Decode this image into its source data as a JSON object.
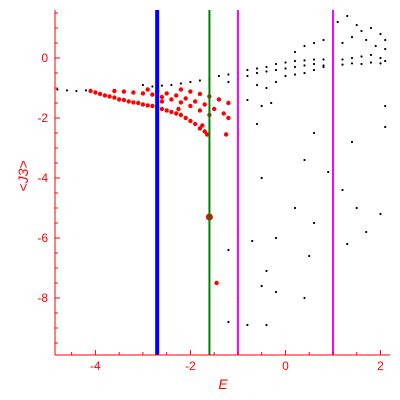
{
  "chart_data": {
    "type": "scatter",
    "title": "",
    "xlabel": "E",
    "ylabel": "<J3>",
    "xlim": [
      -4.85,
      2.2
    ],
    "ylim": [
      -9.9,
      1.6
    ],
    "x_ticks": [
      -4,
      -2,
      0,
      2
    ],
    "y_ticks": [
      0,
      -2,
      -4,
      -6,
      -8
    ],
    "axis_color": "#ff0000",
    "grid": false,
    "legend": "none",
    "vertical_lines": [
      {
        "x": -2.7,
        "color": "#0000ff"
      },
      {
        "x": -1.6,
        "color": "#008000"
      },
      {
        "x": -1.0,
        "color": "#ff00ff"
      },
      {
        "x": 1.0,
        "color": "#ff00ff"
      }
    ],
    "series": [
      {
        "color": "#ff0000",
        "points": [
          [
            -4.1,
            -1.1
          ],
          [
            -4.0,
            -1.15
          ],
          [
            -3.9,
            -1.2
          ],
          [
            -3.8,
            -1.25
          ],
          [
            -3.7,
            -1.28
          ],
          [
            -3.6,
            -1.32
          ],
          [
            -3.5,
            -1.38
          ],
          [
            -3.4,
            -1.4
          ],
          [
            -3.3,
            -1.45
          ],
          [
            -3.2,
            -1.48
          ],
          [
            -3.1,
            -1.5
          ],
          [
            -3.0,
            -1.55
          ],
          [
            -2.9,
            -1.58
          ],
          [
            -2.8,
            -1.6
          ],
          [
            -2.7,
            -1.65
          ],
          [
            -2.6,
            -1.7
          ],
          [
            -2.5,
            -1.75
          ],
          [
            -2.4,
            -1.8
          ],
          [
            -2.3,
            -1.85
          ],
          [
            -2.2,
            -1.9
          ],
          [
            -2.1,
            -2.0
          ],
          [
            -2.0,
            -2.1
          ],
          [
            -1.9,
            -2.2
          ],
          [
            -1.8,
            -2.35
          ],
          [
            -1.7,
            -2.45
          ],
          [
            -1.65,
            -2.55
          ],
          [
            -3.6,
            -1.1
          ],
          [
            -3.4,
            -1.12
          ],
          [
            -3.2,
            -1.15
          ],
          [
            -3.0,
            -1.18
          ],
          [
            -2.8,
            -1.22
          ],
          [
            -2.6,
            -1.3
          ],
          [
            -2.4,
            -1.38
          ],
          [
            -2.2,
            -1.48
          ],
          [
            -2.0,
            -1.6
          ],
          [
            -1.8,
            -1.75
          ],
          [
            -1.6,
            -1.9
          ],
          [
            -2.9,
            -1.05
          ],
          [
            -2.7,
            -1.1
          ],
          [
            -2.5,
            -1.18
          ],
          [
            -2.3,
            -1.25
          ],
          [
            -2.1,
            -1.35
          ],
          [
            -1.9,
            -1.45
          ],
          [
            -1.7,
            -1.55
          ],
          [
            -1.5,
            -1.7
          ],
          [
            -1.3,
            -1.85
          ],
          [
            -2.2,
            -1.05
          ],
          [
            -2.0,
            -1.12
          ],
          [
            -1.8,
            -1.2
          ],
          [
            -1.6,
            -1.28
          ],
          [
            -1.4,
            -1.38
          ],
          [
            -1.2,
            -1.5
          ],
          [
            -1.6,
            -5.3
          ],
          [
            -1.45,
            -7.5
          ],
          [
            -1.25,
            -2.55
          ],
          [
            -1.2,
            -2.0
          ],
          [
            -1.75,
            -2.25
          ],
          [
            -2.25,
            -1.7
          ],
          [
            -2.6,
            -1.45
          ]
        ]
      },
      {
        "color": "#000000",
        "points": [
          [
            -4.8,
            -1.05
          ],
          [
            -4.6,
            -1.08
          ],
          [
            -4.4,
            -1.1
          ],
          [
            -4.2,
            -1.08
          ],
          [
            -3.0,
            -0.9
          ],
          [
            -2.8,
            -0.95
          ],
          [
            -2.6,
            -0.92
          ],
          [
            -2.4,
            -0.9
          ],
          [
            -2.2,
            -0.85
          ],
          [
            -2.0,
            -0.8
          ],
          [
            -1.8,
            -0.75
          ],
          [
            -1.6,
            -0.7
          ],
          [
            -1.4,
            -0.6
          ],
          [
            -1.2,
            -0.55
          ],
          [
            -1.0,
            -0.5
          ],
          [
            -0.8,
            -0.4
          ],
          [
            -0.6,
            -0.35
          ],
          [
            -0.4,
            -0.3
          ],
          [
            -0.2,
            -0.2
          ],
          [
            0.0,
            -0.15
          ],
          [
            0.2,
            -0.1
          ],
          [
            0.4,
            -0.08
          ],
          [
            0.6,
            -0.05
          ],
          [
            0.8,
            -0.05
          ],
          [
            1.0,
            -0.1
          ],
          [
            1.2,
            -0.05
          ],
          [
            1.4,
            0.0
          ],
          [
            1.6,
            0.05
          ],
          [
            1.8,
            0.1
          ],
          [
            2.0,
            0.0
          ],
          [
            2.1,
            -0.1
          ],
          [
            -1.2,
            -0.8
          ],
          [
            -1.0,
            -0.7
          ],
          [
            -0.8,
            -0.6
          ],
          [
            -0.6,
            -0.5
          ],
          [
            -0.4,
            -0.45
          ],
          [
            -0.2,
            -0.4
          ],
          [
            0.0,
            -0.35
          ],
          [
            0.2,
            -0.3
          ],
          [
            0.4,
            -0.25
          ],
          [
            0.6,
            -0.2
          ],
          [
            0.8,
            -0.25
          ],
          [
            1.0,
            -0.2
          ],
          [
            1.2,
            -0.22
          ],
          [
            1.4,
            -0.18
          ],
          [
            1.6,
            -0.2
          ],
          [
            1.8,
            -0.15
          ],
          [
            2.0,
            -0.18
          ],
          [
            -0.6,
            -0.9
          ],
          [
            -0.4,
            -1.0
          ],
          [
            -0.2,
            -0.8
          ],
          [
            0.0,
            -0.6
          ],
          [
            0.2,
            -0.55
          ],
          [
            0.4,
            -0.5
          ],
          [
            0.6,
            -0.4
          ],
          [
            0.8,
            -0.3
          ],
          [
            1.0,
            0.3
          ],
          [
            1.2,
            0.5
          ],
          [
            1.4,
            0.7
          ],
          [
            1.6,
            0.9
          ],
          [
            1.8,
            1.0
          ],
          [
            2.0,
            0.8
          ],
          [
            2.1,
            0.6
          ],
          [
            0.2,
            0.2
          ],
          [
            0.4,
            0.4
          ],
          [
            0.6,
            0.5
          ],
          [
            0.8,
            0.6
          ],
          [
            1.0,
            1.0
          ],
          [
            1.1,
            1.2
          ],
          [
            1.3,
            1.4
          ],
          [
            1.5,
            1.1
          ],
          [
            1.7,
            0.6
          ],
          [
            1.9,
            0.4
          ],
          [
            2.1,
            0.3
          ],
          [
            -0.8,
            -1.4
          ],
          [
            -0.5,
            -1.6
          ],
          [
            -0.3,
            -1.5
          ],
          [
            -0.6,
            -2.2
          ],
          [
            0.6,
            -2.5
          ],
          [
            2.1,
            -1.6
          ],
          [
            2.1,
            -2.3
          ],
          [
            1.4,
            -2.8
          ],
          [
            0.4,
            -3.4
          ],
          [
            0.9,
            -3.8
          ],
          [
            -0.5,
            -4.0
          ],
          [
            1.2,
            -4.4
          ],
          [
            0.2,
            -5.0
          ],
          [
            1.5,
            -5.0
          ],
          [
            0.6,
            -5.5
          ],
          [
            2.0,
            -5.2
          ],
          [
            1.7,
            -5.8
          ],
          [
            -1.0,
            -5.8
          ],
          [
            1.0,
            -5.9
          ],
          [
            -0.7,
            -6.1
          ],
          [
            -0.2,
            -6.0
          ],
          [
            0.5,
            -6.6
          ],
          [
            1.3,
            -6.2
          ],
          [
            -1.2,
            -6.4
          ],
          [
            -0.4,
            -7.1
          ],
          [
            1.0,
            -7.0
          ],
          [
            -0.5,
            -7.6
          ],
          [
            -1.0,
            -8.0
          ],
          [
            -0.2,
            -7.8
          ],
          [
            0.4,
            -8.0
          ],
          [
            -1.2,
            -8.8
          ],
          [
            -0.8,
            -8.9
          ],
          [
            -0.4,
            -8.9
          ]
        ]
      }
    ]
  }
}
